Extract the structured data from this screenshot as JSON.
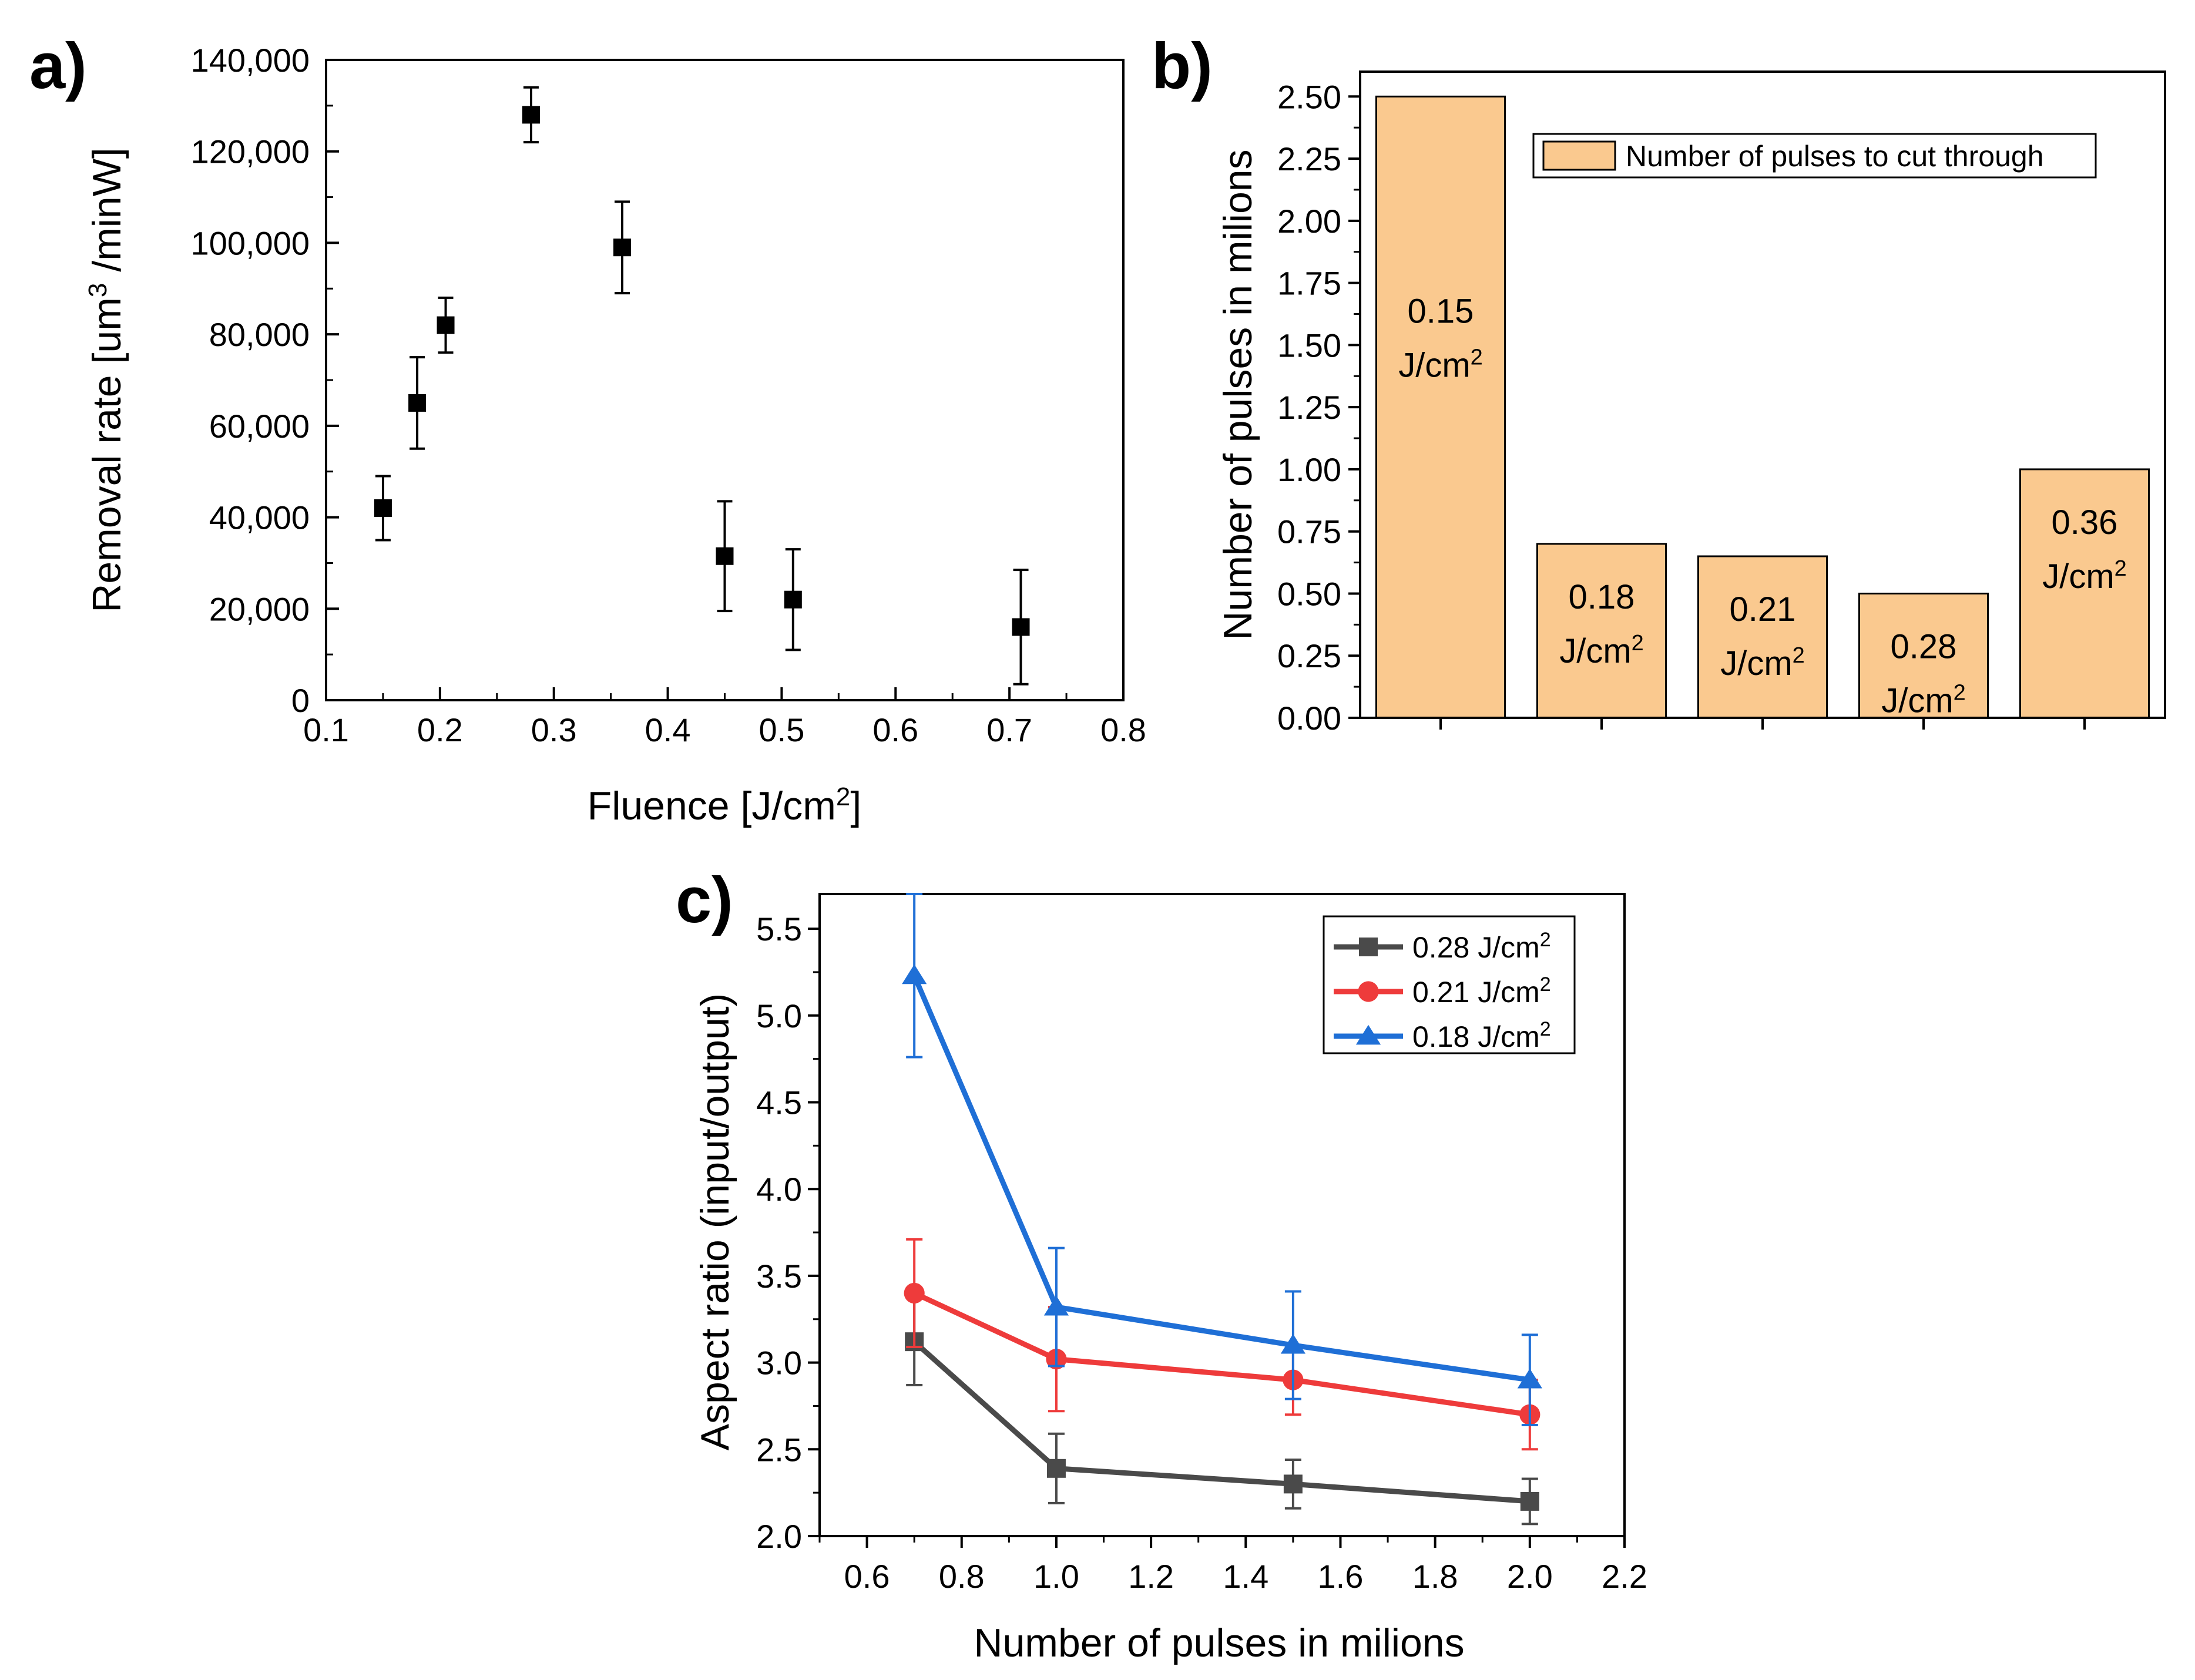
{
  "chart_data": [
    {
      "panel": "a)",
      "type": "scatter",
      "xlabel": "Fluence [J/cm",
      "xlabel_sup": "2",
      "xlabel_end": "]",
      "ylabel": "Removal rate [um",
      "ylabel_sup": "3",
      "ylabel_end": " /minW]",
      "xlim": [
        0.1,
        0.8
      ],
      "ylim": [
        0,
        140000
      ],
      "xticks": [
        0.1,
        0.2,
        0.3,
        0.4,
        0.5,
        0.6,
        0.7,
        0.8
      ],
      "xtick_labels": [
        "0.1",
        "0.2",
        "0.3",
        "0.4",
        "0.5",
        "0.6",
        "0.7",
        "0.8"
      ],
      "yticks": [
        0,
        20000,
        40000,
        60000,
        80000,
        100000,
        120000,
        140000
      ],
      "ytick_labels": [
        "0",
        "20,000",
        "40,000",
        "60,000",
        "80,000",
        "100,000",
        "120,000",
        "140,000"
      ],
      "points": [
        {
          "x": 0.15,
          "y": 42000,
          "err": 7000
        },
        {
          "x": 0.18,
          "y": 65000,
          "err": 10000
        },
        {
          "x": 0.205,
          "y": 82000,
          "err": 6000
        },
        {
          "x": 0.28,
          "y": 128000,
          "err": 6000
        },
        {
          "x": 0.36,
          "y": 99000,
          "err": 10000
        },
        {
          "x": 0.45,
          "y": 31500,
          "err": 12000
        },
        {
          "x": 0.51,
          "y": 22000,
          "err": 11000
        },
        {
          "x": 0.71,
          "y": 16000,
          "err": 12500
        }
      ],
      "marker_color": "#000000"
    },
    {
      "panel": "b)",
      "type": "bar",
      "ylabel": "Number of pulses in milions",
      "ylim": [
        0,
        2.6
      ],
      "yticks": [
        0,
        0.25,
        0.5,
        0.75,
        1,
        1.25,
        1.5,
        1.75,
        2,
        2.25,
        2.5
      ],
      "ytick_labels": [
        "0.00",
        "0.25",
        "0.50",
        "0.75",
        "1.00",
        "1.25",
        "1.50",
        "1.75",
        "2.00",
        "2.25",
        "2.50"
      ],
      "legend": "Number of pulses to cut through",
      "bar_color": "#FAC98F",
      "bars": [
        {
          "value": 2.5,
          "label1": "0.15",
          "label2": "J/cm",
          "sup": "2"
        },
        {
          "value": 0.7,
          "label1": "0.18",
          "label2": "J/cm",
          "sup": "2"
        },
        {
          "value": 0.65,
          "label1": "0.21",
          "label2": "J/cm",
          "sup": "2"
        },
        {
          "value": 0.5,
          "label1": "0.28",
          "label2": "J/cm",
          "sup": "2"
        },
        {
          "value": 1.0,
          "label1": "0.36",
          "label2": "J/cm",
          "sup": "2"
        }
      ]
    },
    {
      "panel": "c)",
      "type": "line",
      "xlabel": "Number of pulses in milions",
      "ylabel": "Aspect ratio (input/output)",
      "xlim": [
        0.5,
        2.2
      ],
      "ylim": [
        2.0,
        5.7
      ],
      "xticks": [
        0.6,
        0.8,
        1.0,
        1.2,
        1.4,
        1.6,
        1.8,
        2.0,
        2.2
      ],
      "xtick_labels": [
        "0.6",
        "0.8",
        "1.0",
        "1.2",
        "1.4",
        "1.6",
        "1.8",
        "2.0",
        "2.2"
      ],
      "yticks": [
        2.0,
        2.5,
        3.0,
        3.5,
        4.0,
        4.5,
        5.0,
        5.5
      ],
      "ytick_labels": [
        "2.0",
        "2.5",
        "3.0",
        "3.5",
        "4.0",
        "4.5",
        "5.0",
        "5.5"
      ],
      "x": [
        0.7,
        1.0,
        1.5,
        2.0
      ],
      "series": [
        {
          "name": "0.28 J/cm",
          "sup": "2",
          "color": "#4A4A4A",
          "marker": "square",
          "values": [
            3.12,
            2.39,
            2.3,
            2.2
          ],
          "errors": [
            0.25,
            0.2,
            0.14,
            0.13
          ]
        },
        {
          "name": "0.21 J/cm",
          "sup": "2",
          "color": "#EE3B3B",
          "marker": "circle",
          "values": [
            3.4,
            3.02,
            2.9,
            2.7
          ],
          "errors": [
            0.31,
            0.3,
            0.2,
            0.2
          ]
        },
        {
          "name": "0.18 J/cm",
          "sup": "2",
          "color": "#1F6FD6",
          "marker": "triangle",
          "values": [
            5.23,
            3.32,
            3.1,
            2.9
          ],
          "errors": [
            0.47,
            0.34,
            0.31,
            0.26
          ]
        }
      ]
    }
  ]
}
